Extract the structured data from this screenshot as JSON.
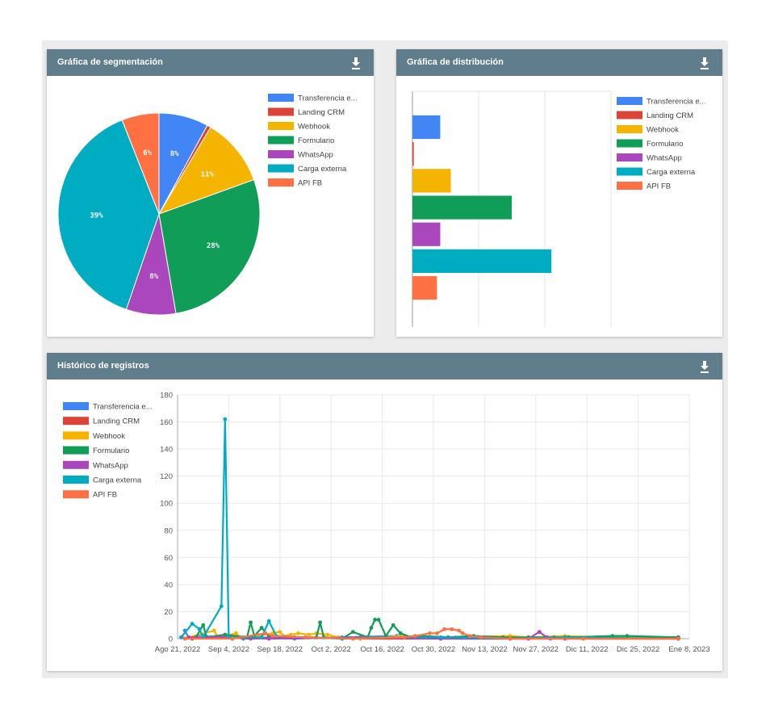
{
  "segmentation": {
    "title": "Gráfica de segmentación",
    "download_icon": "download-icon"
  },
  "distribution": {
    "title": "Gráfica de distribución",
    "download_icon": "download-icon"
  },
  "history": {
    "title": "Histórico de registros",
    "download_icon": "download-icon"
  },
  "legend": [
    {
      "name": "Transferencia e...",
      "color": "#4285f4"
    },
    {
      "name": "Landing CRM",
      "color": "#db4437"
    },
    {
      "name": "Webhook",
      "color": "#f4b400"
    },
    {
      "name": "Formulario",
      "color": "#0f9d58"
    },
    {
      "name": "WhatsApp",
      "color": "#ab47bc"
    },
    {
      "name": "Carga externa",
      "color": "#00acc1"
    },
    {
      "name": "API FB",
      "color": "#ff7043"
    }
  ],
  "chart_data": [
    {
      "type": "pie",
      "slices": [
        {
          "name": "Transferencia e...",
          "value": 8,
          "label": "8%"
        },
        {
          "name": "Landing CRM",
          "value": 0.6,
          "label": ""
        },
        {
          "name": "Webhook",
          "value": 11,
          "label": "11%"
        },
        {
          "name": "Formulario",
          "value": 28,
          "label": "28%"
        },
        {
          "name": "WhatsApp",
          "value": 8,
          "label": "8%"
        },
        {
          "name": "Carga externa",
          "value": 39,
          "label": "39%"
        },
        {
          "name": "API FB",
          "value": 6,
          "label": "6%"
        }
      ]
    },
    {
      "type": "bar",
      "orientation": "horizontal",
      "categories": [
        "Transferencia e...",
        "Landing CRM",
        "Webhook",
        "Formulario",
        "WhatsApp",
        "Carga externa",
        "API FB"
      ],
      "values": [
        42,
        2,
        58,
        150,
        42,
        210,
        37
      ],
      "xlim": [
        0,
        300
      ],
      "grid": true
    },
    {
      "type": "line",
      "xlabels": [
        "Ago 21, 2022",
        "Sep 4, 2022",
        "Sep 18, 2022",
        "Oct 2, 2022",
        "Oct 16, 2022",
        "Oct 30, 2022",
        "Nov 13, 2022",
        "Nov 27, 2022",
        "Dic 11, 2022",
        "Dic 25, 2022",
        "Ene 8, 2023"
      ],
      "xlim": [
        "2022-08-21",
        "2023-01-08"
      ],
      "ylim": [
        0,
        180
      ],
      "yticks": [
        0,
        20,
        40,
        60,
        80,
        100,
        120,
        140,
        160,
        180
      ],
      "grid": true,
      "series": [
        {
          "name": "Transferencia e...",
          "points": [
            [
              "2022-08-23",
              6
            ],
            [
              "2022-08-24",
              1
            ],
            [
              "2022-08-28",
              3
            ],
            [
              "2022-08-30",
              1
            ],
            [
              "2022-09-03",
              2
            ],
            [
              "2022-09-08",
              0
            ],
            [
              "2022-09-15",
              1
            ],
            [
              "2022-09-22",
              0
            ],
            [
              "2022-10-05",
              1
            ],
            [
              "2022-10-20",
              2
            ],
            [
              "2022-10-28",
              1
            ],
            [
              "2022-11-15",
              1
            ],
            [
              "2022-12-01",
              0
            ],
            [
              "2023-01-05",
              1
            ]
          ]
        },
        {
          "name": "Landing CRM",
          "points": [
            [
              "2022-08-22",
              1
            ],
            [
              "2022-08-25",
              0
            ],
            [
              "2022-09-01",
              1
            ],
            [
              "2022-09-10",
              0
            ],
            [
              "2022-09-20",
              1
            ],
            [
              "2022-10-10",
              0
            ],
            [
              "2022-11-01",
              0
            ],
            [
              "2023-01-05",
              0
            ]
          ]
        },
        {
          "name": "Webhook",
          "points": [
            [
              "2022-08-24",
              1
            ],
            [
              "2022-08-31",
              6
            ],
            [
              "2022-09-01",
              1
            ],
            [
              "2022-09-06",
              4
            ],
            [
              "2022-09-07",
              1
            ],
            [
              "2022-09-12",
              2
            ],
            [
              "2022-09-16",
              4
            ],
            [
              "2022-09-18",
              5
            ],
            [
              "2022-09-19",
              2
            ],
            [
              "2022-09-21",
              3
            ],
            [
              "2022-09-23",
              4
            ],
            [
              "2022-09-26",
              3
            ],
            [
              "2022-09-28",
              4
            ],
            [
              "2022-10-01",
              3
            ],
            [
              "2022-10-04",
              1
            ],
            [
              "2022-10-10",
              0
            ],
            [
              "2022-10-15",
              1
            ],
            [
              "2022-10-22",
              2
            ],
            [
              "2022-10-28",
              1
            ],
            [
              "2022-11-05",
              1
            ],
            [
              "2022-11-20",
              2
            ],
            [
              "2022-11-25",
              1
            ],
            [
              "2022-12-05",
              2
            ],
            [
              "2022-12-15",
              1
            ],
            [
              "2023-01-05",
              1
            ]
          ]
        },
        {
          "name": "Formulario",
          "points": [
            [
              "2022-08-26",
              1
            ],
            [
              "2022-08-28",
              10
            ],
            [
              "2022-08-29",
              1
            ],
            [
              "2022-09-03",
              3
            ],
            [
              "2022-09-09",
              1
            ],
            [
              "2022-09-10",
              12
            ],
            [
              "2022-09-11",
              2
            ],
            [
              "2022-09-13",
              8
            ],
            [
              "2022-09-15",
              2
            ],
            [
              "2022-09-22",
              1
            ],
            [
              "2022-09-28",
              1
            ],
            [
              "2022-09-29",
              12
            ],
            [
              "2022-09-30",
              1
            ],
            [
              "2022-10-05",
              0
            ],
            [
              "2022-10-08",
              5
            ],
            [
              "2022-10-12",
              1
            ],
            [
              "2022-10-13",
              8
            ],
            [
              "2022-10-14",
              14
            ],
            [
              "2022-10-15",
              14
            ],
            [
              "2022-10-17",
              2
            ],
            [
              "2022-10-19",
              10
            ],
            [
              "2022-10-21",
              4
            ],
            [
              "2022-10-24",
              1
            ],
            [
              "2022-10-27",
              2
            ],
            [
              "2022-11-03",
              1
            ],
            [
              "2022-11-10",
              2
            ],
            [
              "2022-11-18",
              1
            ],
            [
              "2022-11-25",
              1
            ],
            [
              "2022-12-02",
              1
            ],
            [
              "2022-12-06",
              1
            ],
            [
              "2022-12-18",
              2
            ],
            [
              "2022-12-22",
              2
            ],
            [
              "2023-01-05",
              1
            ]
          ]
        },
        {
          "name": "WhatsApp",
          "points": [
            [
              "2022-08-24",
              1
            ],
            [
              "2022-09-02",
              1
            ],
            [
              "2022-09-15",
              0
            ],
            [
              "2022-10-10",
              1
            ],
            [
              "2022-11-01",
              0
            ],
            [
              "2022-11-25",
              0
            ],
            [
              "2022-11-28",
              5
            ],
            [
              "2022-11-30",
              1
            ],
            [
              "2022-12-05",
              0
            ],
            [
              "2023-01-05",
              0
            ]
          ]
        },
        {
          "name": "Carga externa",
          "points": [
            [
              "2022-08-22",
              1
            ],
            [
              "2022-08-25",
              11
            ],
            [
              "2022-08-27",
              7
            ],
            [
              "2022-08-28",
              1
            ],
            [
              "2022-09-02",
              24
            ],
            [
              "2022-09-03",
              162
            ],
            [
              "2022-09-04",
              1
            ],
            [
              "2022-09-08",
              1
            ],
            [
              "2022-09-13",
              1
            ],
            [
              "2022-09-15",
              13
            ],
            [
              "2022-09-17",
              2
            ],
            [
              "2022-09-25",
              1
            ],
            [
              "2022-10-05",
              0
            ],
            [
              "2022-10-15",
              1
            ],
            [
              "2022-11-01",
              1
            ],
            [
              "2022-11-20",
              0
            ],
            [
              "2022-12-05",
              1
            ],
            [
              "2023-01-05",
              0
            ]
          ]
        },
        {
          "name": "API FB",
          "points": [
            [
              "2022-08-23",
              0
            ],
            [
              "2022-09-05",
              0
            ],
            [
              "2022-09-14",
              4
            ],
            [
              "2022-09-16",
              2
            ],
            [
              "2022-09-25",
              1
            ],
            [
              "2022-10-08",
              0
            ],
            [
              "2022-10-22",
              1
            ],
            [
              "2022-10-25",
              2
            ],
            [
              "2022-10-29",
              4
            ],
            [
              "2022-10-31",
              4
            ],
            [
              "2022-11-02",
              7
            ],
            [
              "2022-11-04",
              7
            ],
            [
              "2022-11-06",
              6
            ],
            [
              "2022-11-07",
              4
            ],
            [
              "2022-11-09",
              2
            ],
            [
              "2022-11-12",
              1
            ],
            [
              "2022-11-20",
              0
            ],
            [
              "2022-12-10",
              0
            ],
            [
              "2023-01-05",
              0
            ]
          ]
        }
      ]
    }
  ]
}
